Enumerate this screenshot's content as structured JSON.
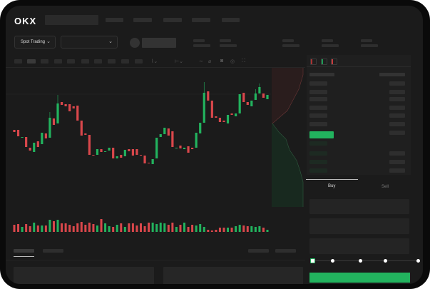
{
  "header": {
    "logo": "OKX"
  },
  "toolbar": {
    "market_select": "Spot Trading",
    "pair_select": ""
  },
  "trade_panel": {
    "tabs": [
      "Buy",
      "Sell"
    ],
    "active_tab": "Buy",
    "slider_value_percent": 0
  },
  "colors": {
    "up": "#22b35e",
    "down": "#d9474b",
    "background": "#1b1b1b",
    "accent": "#22b35e"
  },
  "chart_data": {
    "type": "candlestick",
    "candles": [
      [
        68,
        65
      ],
      [
        68,
        59
      ],
      [
        57,
        58
      ],
      [
        58,
        44
      ],
      [
        43,
        39
      ],
      [
        37,
        50
      ],
      [
        52,
        44
      ],
      [
        48,
        64
      ],
      [
        63,
        56
      ],
      [
        57,
        85,
        93
      ],
      [
        84,
        75
      ],
      [
        77,
        105,
        117
      ],
      [
        107,
        103
      ],
      [
        104,
        101
      ],
      [
        104,
        94
      ],
      [
        101,
        98
      ],
      [
        102,
        81
      ],
      [
        81,
        60
      ],
      [
        63,
        61
      ],
      [
        61,
        33
      ],
      [
        33,
        32
      ],
      [
        33,
        41
      ],
      [
        41,
        37
      ],
      [
        37,
        38
      ],
      [
        39,
        43
      ],
      [
        43,
        28
      ],
      [
        28,
        31
      ],
      [
        33,
        29
      ],
      [
        31,
        40
      ],
      [
        41,
        38
      ],
      [
        41,
        32
      ],
      [
        41,
        33
      ],
      [
        33,
        32
      ],
      [
        32,
        21
      ],
      [
        22,
        21
      ],
      [
        20,
        27
      ],
      [
        28,
        57
      ],
      [
        58,
        62
      ],
      [
        62,
        71
      ],
      [
        70,
        60
      ],
      [
        66,
        44
      ],
      [
        43,
        43
      ],
      [
        46,
        42
      ],
      [
        41,
        43
      ],
      [
        45,
        36
      ],
      [
        43,
        41
      ],
      [
        43,
        64
      ],
      [
        63,
        78
      ],
      [
        78,
        120,
        135
      ],
      [
        122,
        109
      ],
      [
        109,
        85
      ],
      [
        87,
        85
      ],
      [
        85,
        79
      ],
      [
        81,
        79
      ],
      [
        77,
        89
      ],
      [
        91,
        89
      ],
      [
        87,
        91
      ],
      [
        91,
        118
      ],
      [
        120,
        107
      ],
      [
        107,
        103
      ],
      [
        101,
        109
      ],
      [
        110,
        119,
        125
      ],
      [
        119,
        128,
        133
      ],
      [
        119,
        113
      ],
      [
        111,
        117
      ]
    ],
    "volume": [
      10,
      11,
      7,
      11,
      8,
      13,
      9,
      9,
      9,
      17,
      15,
      17,
      12,
      12,
      10,
      8,
      12,
      14,
      10,
      13,
      11,
      9,
      18,
      12,
      8,
      7,
      10,
      12,
      7,
      12,
      12,
      9,
      12,
      8,
      13,
      13,
      11,
      13,
      12,
      10,
      13,
      7,
      10,
      13,
      7,
      10,
      9,
      11,
      7,
      3,
      2,
      3,
      6,
      6,
      6,
      6,
      8,
      10,
      9,
      8,
      8,
      7,
      8,
      6,
      3
    ]
  }
}
